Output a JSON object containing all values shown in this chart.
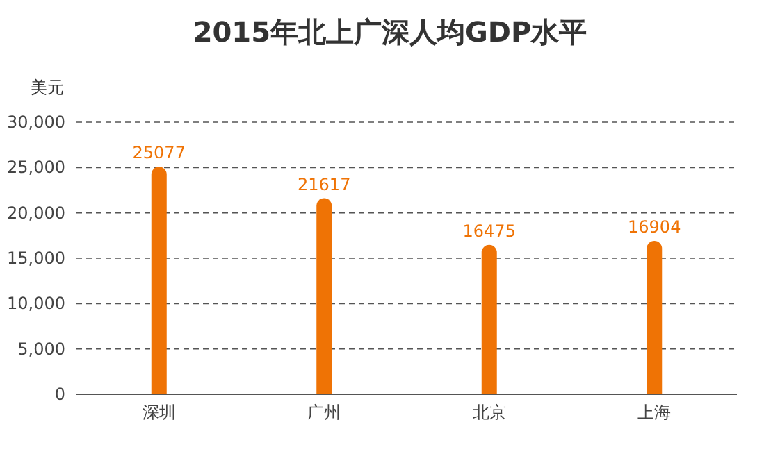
{
  "chart_data": {
    "type": "bar",
    "title": "2015年北上广深人均GDP水平",
    "ylabel": "美元",
    "categories": [
      "深圳",
      "广州",
      "北京",
      "上海"
    ],
    "values": [
      25077,
      21617,
      16475,
      16904
    ],
    "color": "#ef7305",
    "ylim": [
      0,
      30000
    ],
    "yticks": [
      {
        "value": 0,
        "label": "0"
      },
      {
        "value": 5000,
        "label": "5,000"
      },
      {
        "value": 10000,
        "label": "10,000"
      },
      {
        "value": 15000,
        "label": "15,000"
      },
      {
        "value": 20000,
        "label": "20,000"
      },
      {
        "value": 25000,
        "label": "25,000"
      },
      {
        "value": 30000,
        "label": "30,000"
      }
    ],
    "grid": "y",
    "data_labels": true
  }
}
